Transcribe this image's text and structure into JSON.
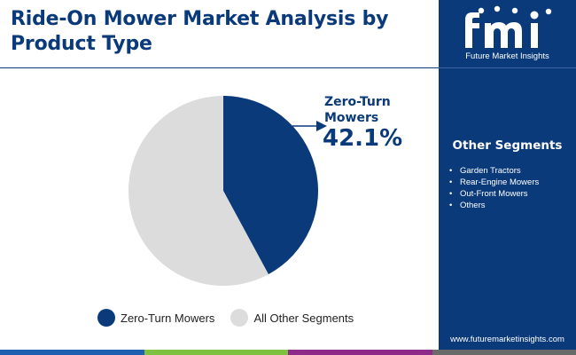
{
  "title": "Ride-On Mower Market Analysis by Product Type",
  "chart_data": {
    "type": "pie",
    "title": "Ride-On Mower Market Analysis by Product Type",
    "slices": [
      {
        "label": "Zero-Turn Mowers",
        "value": 42.1,
        "color": "#0a3a7a"
      },
      {
        "label": "All Other Segments",
        "value": 57.9,
        "color": "#dcdcdc"
      }
    ],
    "callout": {
      "label": "Zero-Turn Mowers",
      "value_text": "42.1%"
    },
    "legend_position": "bottom"
  },
  "sidebar": {
    "brand_mark": "fmi",
    "brand_name": "Future Market Insights",
    "segments_title": "Other Segments",
    "segments": [
      "Garden Tractors",
      "Rear-Engine Mowers",
      "Out-Front Mowers",
      "Others"
    ],
    "url": "www.futuremarketinsights.com",
    "background": "#0a3a7a"
  },
  "footer_colors": [
    "#1f5fb0",
    "#7fc241",
    "#8e2a8a",
    "#6a6a6a"
  ]
}
